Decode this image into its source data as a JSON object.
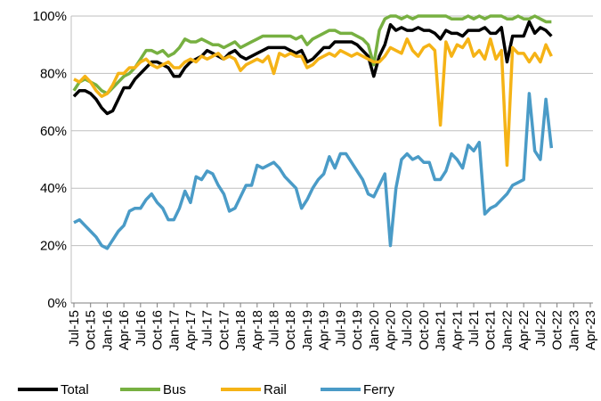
{
  "chart_data": {
    "type": "line",
    "categories": [
      "Jul-15",
      null,
      null,
      "Oct-15",
      null,
      null,
      "Jan-16",
      null,
      null,
      "Apr-16",
      null,
      null,
      "Jul-16",
      null,
      null,
      "Oct-16",
      null,
      null,
      "Jan-17",
      null,
      null,
      "Apr-17",
      null,
      null,
      "Jul-17",
      null,
      null,
      "Oct-17",
      null,
      null,
      "Jan-18",
      null,
      null,
      "Apr-18",
      null,
      null,
      "Jul-18",
      null,
      null,
      "Oct-18",
      null,
      null,
      "Jan-19",
      null,
      null,
      "Apr-19",
      null,
      null,
      "Jul-19",
      null,
      null,
      "Oct-19",
      null,
      null,
      "Jan-20",
      null,
      null,
      "Apr-20",
      null,
      null,
      "Jul-20",
      null,
      null,
      "Oct-20",
      null,
      null,
      "Jan-21",
      null,
      null,
      "Apr-21",
      null,
      null,
      "Jul-21",
      null,
      null,
      "Oct-21",
      null,
      null,
      "Jan-22",
      null,
      null,
      "Apr-22",
      null,
      null,
      "Jul-22",
      null,
      null,
      "Oct-22",
      null,
      null,
      "Jan-23",
      null,
      null,
      "Apr-23"
    ],
    "series": [
      {
        "name": "Total",
        "color": "#000000",
        "values": [
          72,
          74,
          74,
          73,
          71,
          68,
          66,
          67,
          71,
          75,
          75,
          78,
          80,
          82,
          84,
          84,
          83,
          82,
          79,
          79,
          82,
          84,
          85,
          86,
          88,
          87,
          86,
          85,
          87,
          88,
          86,
          85,
          86,
          87,
          88,
          89,
          89,
          89,
          89,
          88,
          87,
          88,
          84,
          85,
          87,
          89,
          89,
          91,
          91,
          91,
          91,
          90,
          88,
          86,
          79,
          86,
          90,
          97,
          95,
          96,
          95,
          95,
          96,
          95,
          95,
          94,
          92,
          95,
          94,
          94,
          93,
          95,
          95,
          95,
          96,
          94,
          94,
          96,
          84,
          93,
          93,
          93,
          98,
          94,
          96,
          95,
          93,
          null,
          null,
          null,
          null,
          null,
          null,
          null
        ]
      },
      {
        "name": "Bus",
        "color": "#77b041",
        "values": [
          74,
          77,
          78,
          77,
          76,
          74,
          73,
          75,
          77,
          79,
          80,
          82,
          85,
          88,
          88,
          87,
          88,
          86,
          87,
          89,
          92,
          91,
          91,
          92,
          91,
          90,
          90,
          89,
          90,
          91,
          89,
          90,
          91,
          92,
          93,
          93,
          93,
          93,
          93,
          93,
          92,
          93,
          90,
          92,
          93,
          94,
          95,
          95,
          94,
          94,
          94,
          93,
          92,
          90,
          83,
          95,
          99,
          100,
          100,
          99,
          100,
          99,
          100,
          100,
          100,
          100,
          100,
          100,
          99,
          99,
          99,
          100,
          99,
          100,
          99,
          100,
          100,
          100,
          99,
          99,
          100,
          99,
          99,
          100,
          99,
          98,
          98,
          null,
          null,
          null,
          null,
          null,
          null,
          null
        ]
      },
      {
        "name": "Rail",
        "color": "#f5b316",
        "values": [
          78,
          77,
          79,
          77,
          74,
          72,
          73,
          76,
          80,
          80,
          82,
          82,
          84,
          85,
          83,
          82,
          83,
          84,
          82,
          82,
          84,
          85,
          84,
          86,
          85,
          86,
          87,
          85,
          86,
          85,
          81,
          83,
          84,
          85,
          84,
          86,
          80,
          87,
          86,
          87,
          86,
          86,
          82,
          83,
          85,
          86,
          87,
          86,
          88,
          87,
          86,
          87,
          86,
          85,
          84,
          84,
          86,
          89,
          88,
          87,
          92,
          88,
          86,
          89,
          90,
          88,
          62,
          91,
          86,
          90,
          89,
          92,
          86,
          88,
          85,
          92,
          85,
          88,
          48,
          89,
          87,
          87,
          84,
          87,
          84,
          90,
          86,
          null,
          null,
          null,
          null,
          null,
          null,
          null
        ]
      },
      {
        "name": "Ferry",
        "color": "#4a9bc7",
        "values": [
          28,
          29,
          27,
          25,
          23,
          20,
          19,
          22,
          25,
          27,
          32,
          33,
          33,
          36,
          38,
          35,
          33,
          29,
          29,
          33,
          39,
          35,
          44,
          43,
          46,
          45,
          41,
          38,
          32,
          33,
          37,
          41,
          41,
          48,
          47,
          48,
          49,
          47,
          44,
          42,
          40,
          33,
          36,
          40,
          43,
          45,
          51,
          47,
          52,
          52,
          49,
          46,
          43,
          38,
          37,
          41,
          45,
          20,
          40,
          50,
          52,
          50,
          51,
          49,
          49,
          43,
          43,
          46,
          52,
          50,
          47,
          55,
          53,
          56,
          31,
          33,
          34,
          36,
          38,
          41,
          42,
          43,
          73,
          53,
          50,
          71,
          54,
          null,
          null,
          null,
          null,
          null,
          null,
          null
        ]
      }
    ],
    "ylim": [
      0,
      100
    ],
    "yticks": [
      {
        "value": 0,
        "label": "0%"
      },
      {
        "value": 20,
        "label": "20%"
      },
      {
        "value": 40,
        "label": "40%"
      },
      {
        "value": 60,
        "label": "60%"
      },
      {
        "value": 80,
        "label": "80%"
      },
      {
        "value": 100,
        "label": "100%"
      }
    ],
    "grid": true,
    "legend": "bottom"
  }
}
